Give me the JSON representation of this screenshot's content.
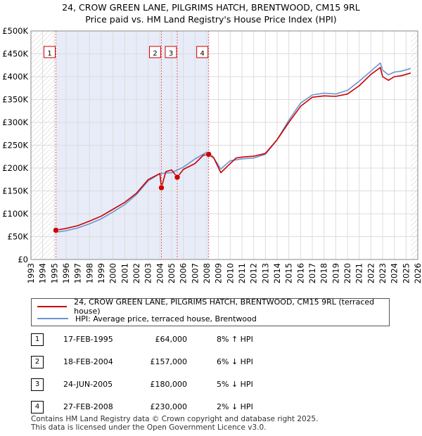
{
  "chart_data": {
    "type": "line",
    "title": "24, CROW GREEN LANE, PILGRIMS HATCH, BRENTWOOD, CM15 9RL",
    "subtitle": "Price paid vs. HM Land Registry's House Price Index (HPI)",
    "xlabel": "",
    "ylabel": "",
    "xlim": [
      1993,
      2026
    ],
    "ylim": [
      0,
      500000
    ],
    "y_ticks": [
      0,
      50000,
      100000,
      150000,
      200000,
      250000,
      300000,
      350000,
      400000,
      450000,
      500000
    ],
    "y_tick_labels": [
      "£0",
      "£50K",
      "£100K",
      "£150K",
      "£200K",
      "£250K",
      "£300K",
      "£350K",
      "£400K",
      "£450K",
      "£500K"
    ],
    "x_ticks": [
      1993,
      1994,
      1995,
      1996,
      1997,
      1998,
      1999,
      2000,
      2001,
      2002,
      2003,
      2004,
      2005,
      2006,
      2007,
      2008,
      2009,
      2010,
      2011,
      2012,
      2013,
      2014,
      2015,
      2016,
      2017,
      2018,
      2019,
      2020,
      2021,
      2022,
      2023,
      2024,
      2025,
      2026
    ],
    "data_start": 1995.0,
    "data_end": 2025.4,
    "shaded_region": [
      1995.13,
      2008.16
    ],
    "series": [
      {
        "name": "24, CROW GREEN LANE, PILGRIMS HATCH, BRENTWOOD, CM15 9RL (terraced house)",
        "color": "#cc0000",
        "x": [
          1995.13,
          1996,
          1997,
          1998,
          1999,
          2000,
          2001,
          2002,
          2003,
          2004.0,
          2004.13,
          2004.5,
          2005,
          2005.48,
          2006,
          2007,
          2007.7,
          2008.16,
          2008.6,
          2009.2,
          2009.8,
          2010.5,
          2011,
          2012,
          2013,
          2014,
          2015,
          2016,
          2017,
          2018,
          2019,
          2020,
          2021,
          2022,
          2022.8,
          2023,
          2023.5,
          2024,
          2024.6,
          2025.4
        ],
        "values": [
          64000,
          68000,
          74000,
          84000,
          95000,
          110000,
          125000,
          145000,
          175000,
          188000,
          157000,
          192000,
          196000,
          180000,
          197000,
          210000,
          228000,
          230000,
          222000,
          190000,
          205000,
          222000,
          224000,
          226000,
          232000,
          262000,
          300000,
          335000,
          355000,
          358000,
          357000,
          362000,
          380000,
          405000,
          420000,
          400000,
          392000,
          400000,
          402000,
          408000
        ]
      },
      {
        "name": "HPI: Average price, terraced house, Brentwood",
        "color": "#6a95d2",
        "x": [
          1995.0,
          1996,
          1997,
          1998,
          1999,
          2000,
          2001,
          2002,
          2003,
          2004,
          2005,
          2006,
          2007,
          2008.0,
          2008.5,
          2009.2,
          2010,
          2011,
          2012,
          2013,
          2014,
          2015,
          2016,
          2017,
          2018,
          2019,
          2020,
          2021,
          2022,
          2022.8,
          2023,
          2023.5,
          2024,
          2024.6,
          2025.4
        ],
        "values": [
          59000,
          63000,
          69000,
          78000,
          89000,
          104000,
          120000,
          142000,
          172000,
          188000,
          190000,
          202000,
          220000,
          235000,
          226000,
          198000,
          216000,
          220000,
          222000,
          230000,
          262000,
          305000,
          342000,
          360000,
          364000,
          362000,
          370000,
          390000,
          412000,
          430000,
          414000,
          404000,
          410000,
          412000,
          418000
        ]
      }
    ],
    "transactions": [
      {
        "num": "1",
        "label": "1",
        "x": 1995.13,
        "value": 64000
      },
      {
        "num": "2",
        "label": "2",
        "x": 2004.13,
        "value": 157000
      },
      {
        "num": "3",
        "label": "3",
        "x": 2005.48,
        "value": 180000
      },
      {
        "num": "4",
        "label": "4",
        "x": 2008.16,
        "value": 230000
      }
    ]
  },
  "legend": {
    "red_label": "24, CROW GREEN LANE, PILGRIMS HATCH, BRENTWOOD, CM15 9RL (terraced house)",
    "blue_label": "HPI: Average price, terraced house, Brentwood"
  },
  "table": [
    {
      "num": "1",
      "date": "17-FEB-1995",
      "price": "£64,000",
      "rel": "8% ↑ HPI"
    },
    {
      "num": "2",
      "date": "18-FEB-2004",
      "price": "£157,000",
      "rel": "6% ↓ HPI"
    },
    {
      "num": "3",
      "date": "24-JUN-2005",
      "price": "£180,000",
      "rel": "5% ↓ HPI"
    },
    {
      "num": "4",
      "date": "27-FEB-2008",
      "price": "£230,000",
      "rel": "2% ↓ HPI"
    }
  ],
  "footer": {
    "line1": "Contains HM Land Registry data © Crown copyright and database right 2025.",
    "line2": "This data is licensed under the Open Government Licence v3.0."
  }
}
